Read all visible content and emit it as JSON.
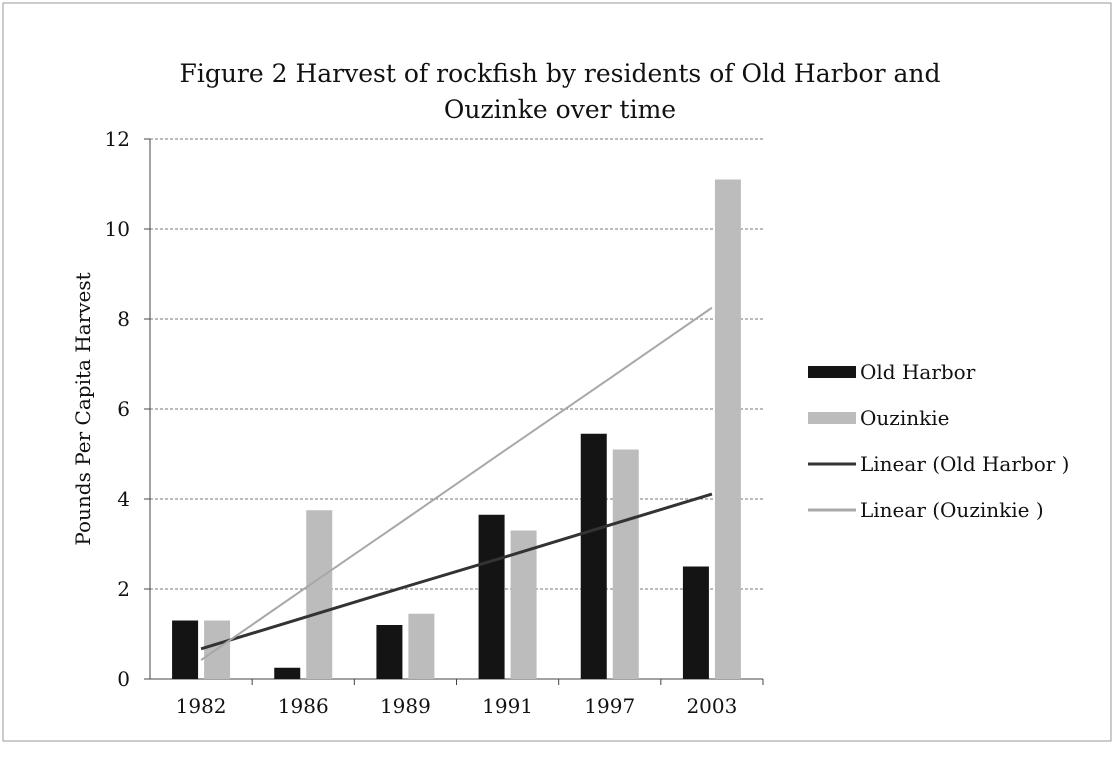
{
  "chart_data": {
    "type": "bar",
    "title": "Figure 2 Harvest of rockfish by residents of Old Harbor and Ouzinke over time",
    "y_label": "Pounds Per Capita Harvest",
    "categories": [
      "1982",
      "1986",
      "1989",
      "1991",
      "1997",
      "2003"
    ],
    "series": [
      {
        "name": "Old Harbor",
        "type": "bar",
        "color": "#141414",
        "values": [
          1.3,
          0.25,
          1.2,
          3.65,
          5.45,
          2.5
        ]
      },
      {
        "name": "Ouzinkie",
        "type": "bar",
        "color": "#bcbcbc",
        "values": [
          1.3,
          3.75,
          1.45,
          3.3,
          5.1,
          11.1
        ]
      },
      {
        "name": "Linear (Old Harbor )",
        "type": "line",
        "color": "#333333",
        "values": [
          0.67,
          1.36,
          2.05,
          2.73,
          3.42,
          4.11
        ]
      },
      {
        "name": "Linear (Ouzinkie )",
        "type": "line",
        "color": "#a8a8a8",
        "values": [
          0.42,
          1.99,
          3.55,
          5.12,
          6.68,
          8.25
        ]
      }
    ],
    "ylim": [
      0,
      12
    ],
    "yticks": [
      0,
      2,
      4,
      6,
      8,
      10,
      12
    ],
    "grid": true,
    "legend": "right"
  }
}
